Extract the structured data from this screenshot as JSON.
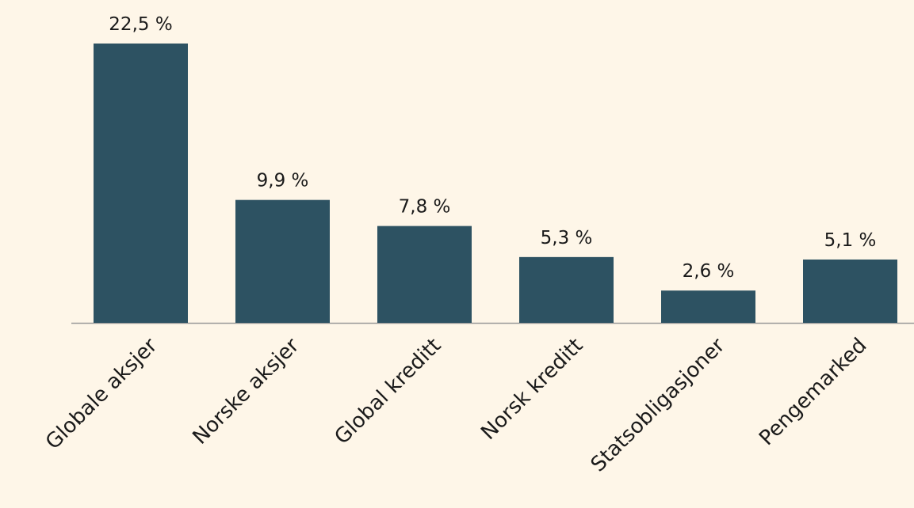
{
  "chart_data": {
    "type": "bar",
    "categories": [
      "Globale aksjer",
      "Norske aksjer",
      "Global kreditt",
      "Norsk kreditt",
      "Statsobligasjoner",
      "Pengemarked"
    ],
    "values": [
      22.5,
      9.9,
      7.8,
      5.3,
      2.6,
      5.1
    ],
    "value_labels": [
      "22,5 %",
      "9,9 %",
      "7,8 %",
      "5,3 %",
      "2,6 %",
      "5,1 %"
    ],
    "color": "#2d5262"
  }
}
